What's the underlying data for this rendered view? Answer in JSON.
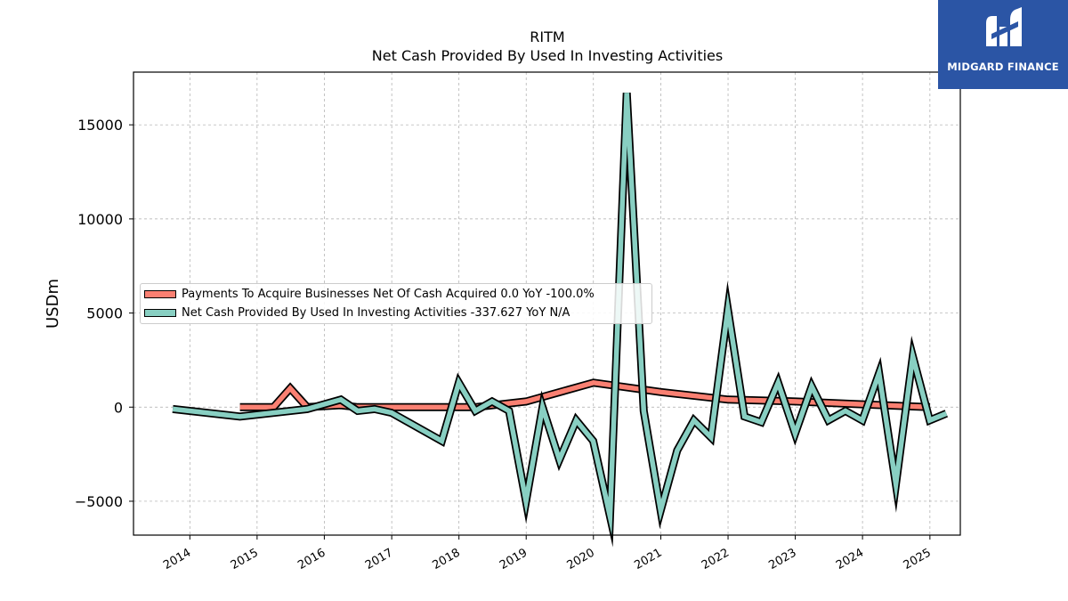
{
  "logo": {
    "text": "MIDGARD FINANCE"
  },
  "chart_data": {
    "type": "line",
    "title": "RITM",
    "subtitle": "Net Cash Provided By Used In Investing Activities",
    "ylabel": "USDm",
    "xlabel": "",
    "xlim": [
      "2013-03-01",
      "2025-06-15"
    ],
    "ylim": [
      -6800,
      17800
    ],
    "x_ticks": [
      "2014",
      "2015",
      "2016",
      "2017",
      "2018",
      "2019",
      "2020",
      "2021",
      "2022",
      "2023",
      "2024",
      "2025"
    ],
    "y_ticks": [
      -5000,
      0,
      5000,
      10000,
      15000
    ],
    "grid": true,
    "legend_position": "center-left",
    "series": [
      {
        "name": "Payments To Acquire Businesses Net Of Cash Acquired",
        "legend_label": "Payments To Acquire Businesses Net Of Cash Acquired  0.0 YoY -100.0%",
        "color": "#fa8072",
        "points": [
          [
            "2014-09-30",
            0
          ],
          [
            "2015-03-31",
            0
          ],
          [
            "2015-06-30",
            1000
          ],
          [
            "2015-09-30",
            0
          ],
          [
            "2016-03-31",
            100
          ],
          [
            "2016-06-30",
            0
          ],
          [
            "2017-01-01",
            0
          ],
          [
            "2018-03-31",
            0
          ],
          [
            "2019-01-01",
            300
          ],
          [
            "2020-01-01",
            1300
          ],
          [
            "2021-01-01",
            800
          ],
          [
            "2022-01-01",
            400
          ],
          [
            "2023-01-01",
            300
          ],
          [
            "2024-01-01",
            150
          ],
          [
            "2025-01-01",
            0
          ]
        ]
      },
      {
        "name": "Net Cash Provided By Used In Investing Activities",
        "legend_label": "Net Cash Provided By Used In Investing Activities  -337.627 YoY N/A",
        "color": "#88cfc2",
        "points": [
          [
            "2013-09-30",
            -100
          ],
          [
            "2014-09-30",
            -500
          ],
          [
            "2015-03-31",
            -300
          ],
          [
            "2015-09-30",
            -100
          ],
          [
            "2016-03-31",
            400
          ],
          [
            "2016-06-30",
            -200
          ],
          [
            "2016-09-30",
            -100
          ],
          [
            "2016-12-31",
            -300
          ],
          [
            "2017-09-30",
            -1800
          ],
          [
            "2017-12-31",
            1300
          ],
          [
            "2018-03-31",
            -200
          ],
          [
            "2018-06-30",
            300
          ],
          [
            "2018-09-30",
            -200
          ],
          [
            "2018-12-31",
            -5000
          ],
          [
            "2019-03-31",
            0
          ],
          [
            "2019-06-30",
            -2800
          ],
          [
            "2019-09-30",
            -700
          ],
          [
            "2019-12-31",
            -1800
          ],
          [
            "2020-03-31",
            -5800
          ],
          [
            "2020-06-30",
            16700
          ],
          [
            "2020-09-30",
            -200
          ],
          [
            "2020-12-31",
            -5500
          ],
          [
            "2021-03-31",
            -2300
          ],
          [
            "2021-06-30",
            -700
          ],
          [
            "2021-09-30",
            -1600
          ],
          [
            "2021-12-31",
            5200
          ],
          [
            "2022-03-31",
            -500
          ],
          [
            "2022-06-30",
            -800
          ],
          [
            "2022-09-30",
            1300
          ],
          [
            "2022-12-31",
            -1400
          ],
          [
            "2023-03-31",
            1100
          ],
          [
            "2023-06-30",
            -700
          ],
          [
            "2023-09-30",
            -200
          ],
          [
            "2023-12-31",
            -700
          ],
          [
            "2024-03-31",
            1800
          ],
          [
            "2024-06-30",
            -4100
          ],
          [
            "2024-09-30",
            2700
          ],
          [
            "2024-12-31",
            -700
          ],
          [
            "2025-03-31",
            -338
          ]
        ]
      }
    ]
  }
}
